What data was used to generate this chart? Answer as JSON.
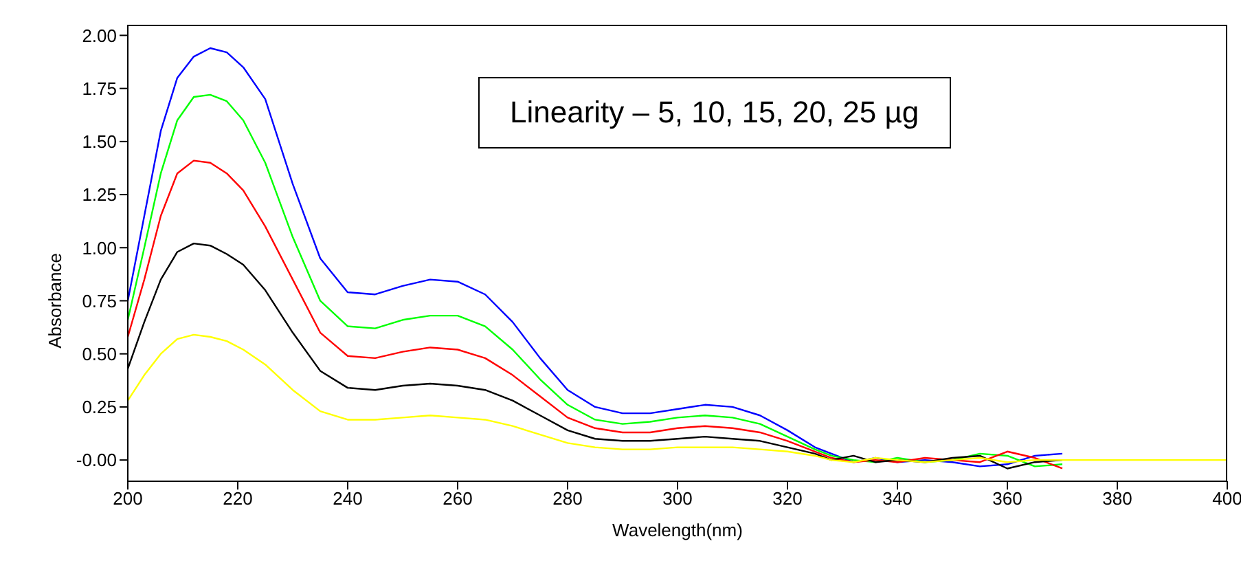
{
  "chart_data": {
    "type": "line",
    "xlabel": "Wavelength(nm)",
    "ylabel": "Absorbance",
    "annotations": [
      "Linearity – 5, 10, 15, 20, 25 µg"
    ],
    "xlim": [
      200,
      400
    ],
    "xticks": [
      200,
      220,
      240,
      260,
      280,
      300,
      320,
      340,
      360,
      380,
      400
    ],
    "ylim": [
      -0.1,
      2.05
    ],
    "yticks": [
      {
        "value": 0,
        "label": "-0.00"
      },
      {
        "value": 0.25,
        "label": "0.25"
      },
      {
        "value": 0.5,
        "label": "0.50"
      },
      {
        "value": 0.75,
        "label": "0.75"
      },
      {
        "value": 1,
        "label": "1.00"
      },
      {
        "value": 1.25,
        "label": "1.25"
      },
      {
        "value": 1.5,
        "label": "1.50"
      },
      {
        "value": 1.75,
        "label": "1.75"
      },
      {
        "value": 2,
        "label": "2.00"
      }
    ],
    "grid": false,
    "marker": "none",
    "line_style": "solid",
    "x": [
      200,
      203,
      206,
      209,
      212,
      215,
      218,
      221,
      225,
      230,
      235,
      240,
      245,
      250,
      255,
      260,
      265,
      270,
      275,
      280,
      285,
      290,
      295,
      300,
      305,
      310,
      315,
      320,
      325,
      328,
      332,
      336,
      340,
      345,
      350,
      355,
      360,
      365,
      370,
      380,
      390,
      400
    ],
    "series": [
      {
        "color": "#0000ff",
        "values": [
          0.75,
          1.15,
          1.55,
          1.8,
          1.9,
          1.94,
          1.92,
          1.85,
          1.7,
          1.3,
          0.95,
          0.79,
          0.78,
          0.82,
          0.85,
          0.84,
          0.78,
          0.65,
          0.48,
          0.33,
          0.25,
          0.22,
          0.22,
          0.24,
          0.26,
          0.25,
          0.21,
          0.14,
          0.06,
          0.03,
          -0.01,
          0.01,
          -0.01,
          0.0,
          -0.01,
          -0.03,
          -0.02,
          0.02,
          0.03,
          null,
          null,
          null
        ]
      },
      {
        "color": "#00ff00",
        "values": [
          0.66,
          1.0,
          1.35,
          1.6,
          1.71,
          1.72,
          1.69,
          1.6,
          1.4,
          1.05,
          0.75,
          0.63,
          0.62,
          0.66,
          0.68,
          0.68,
          0.63,
          0.52,
          0.38,
          0.26,
          0.19,
          0.17,
          0.18,
          0.2,
          0.21,
          0.2,
          0.17,
          0.11,
          0.05,
          0.02,
          0.0,
          -0.01,
          0.01,
          -0.01,
          0.0,
          0.03,
          0.02,
          -0.03,
          -0.02,
          null,
          null,
          null
        ]
      },
      {
        "color": "#ff0000",
        "values": [
          0.58,
          0.85,
          1.15,
          1.35,
          1.41,
          1.4,
          1.35,
          1.27,
          1.1,
          0.85,
          0.6,
          0.49,
          0.48,
          0.51,
          0.53,
          0.52,
          0.48,
          0.4,
          0.3,
          0.2,
          0.15,
          0.13,
          0.13,
          0.15,
          0.16,
          0.15,
          0.13,
          0.09,
          0.04,
          0.01,
          -0.01,
          0.0,
          -0.01,
          0.01,
          0.0,
          -0.01,
          0.04,
          0.01,
          -0.04,
          null,
          null,
          null
        ]
      },
      {
        "color": "#000000",
        "values": [
          0.43,
          0.65,
          0.85,
          0.98,
          1.02,
          1.01,
          0.97,
          0.92,
          0.8,
          0.6,
          0.42,
          0.34,
          0.33,
          0.35,
          0.36,
          0.35,
          0.33,
          0.28,
          0.21,
          0.14,
          0.1,
          0.09,
          0.09,
          0.1,
          0.11,
          0.1,
          0.09,
          0.06,
          0.03,
          0.0,
          0.02,
          -0.01,
          0.0,
          -0.01,
          0.01,
          0.02,
          -0.04,
          -0.01,
          0.0,
          null,
          null,
          null
        ]
      },
      {
        "color": "#ffff00",
        "values": [
          0.28,
          0.4,
          0.5,
          0.57,
          0.59,
          0.58,
          0.56,
          0.52,
          0.45,
          0.33,
          0.23,
          0.19,
          0.19,
          0.2,
          0.21,
          0.2,
          0.19,
          0.16,
          0.12,
          0.08,
          0.06,
          0.05,
          0.05,
          0.06,
          0.06,
          0.06,
          0.05,
          0.04,
          0.02,
          0.0,
          -0.01,
          0.01,
          0.0,
          -0.01,
          0.0,
          0.01,
          -0.01,
          0.0,
          0.0,
          0.0,
          0.0,
          0.0
        ]
      }
    ]
  }
}
